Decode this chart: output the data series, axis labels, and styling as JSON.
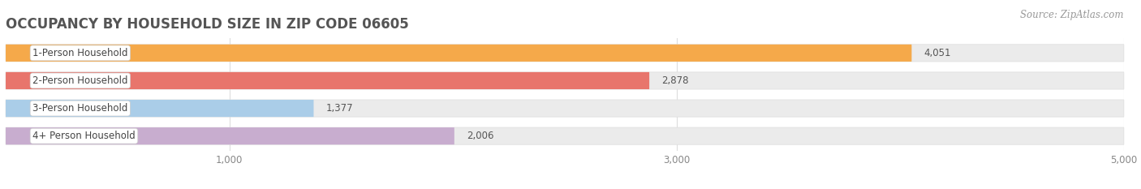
{
  "title": "OCCUPANCY BY HOUSEHOLD SIZE IN ZIP CODE 06605",
  "source": "Source: ZipAtlas.com",
  "categories": [
    "1-Person Household",
    "2-Person Household",
    "3-Person Household",
    "4+ Person Household"
  ],
  "values": [
    4051,
    2878,
    1377,
    2006
  ],
  "bar_colors": [
    "#F5A94A",
    "#E8756C",
    "#AACDE8",
    "#C8ADCF"
  ],
  "bar_bg_color": "#EBEBEB",
  "xlim": [
    0,
    5000
  ],
  "value_labels": [
    "4,051",
    "2,878",
    "1,377",
    "2,006"
  ],
  "background_color": "#FFFFFF",
  "bar_height": 0.62,
  "title_fontsize": 12,
  "label_fontsize": 8.5,
  "value_fontsize": 8.5,
  "source_fontsize": 8.5,
  "rounding_size": 0.25
}
